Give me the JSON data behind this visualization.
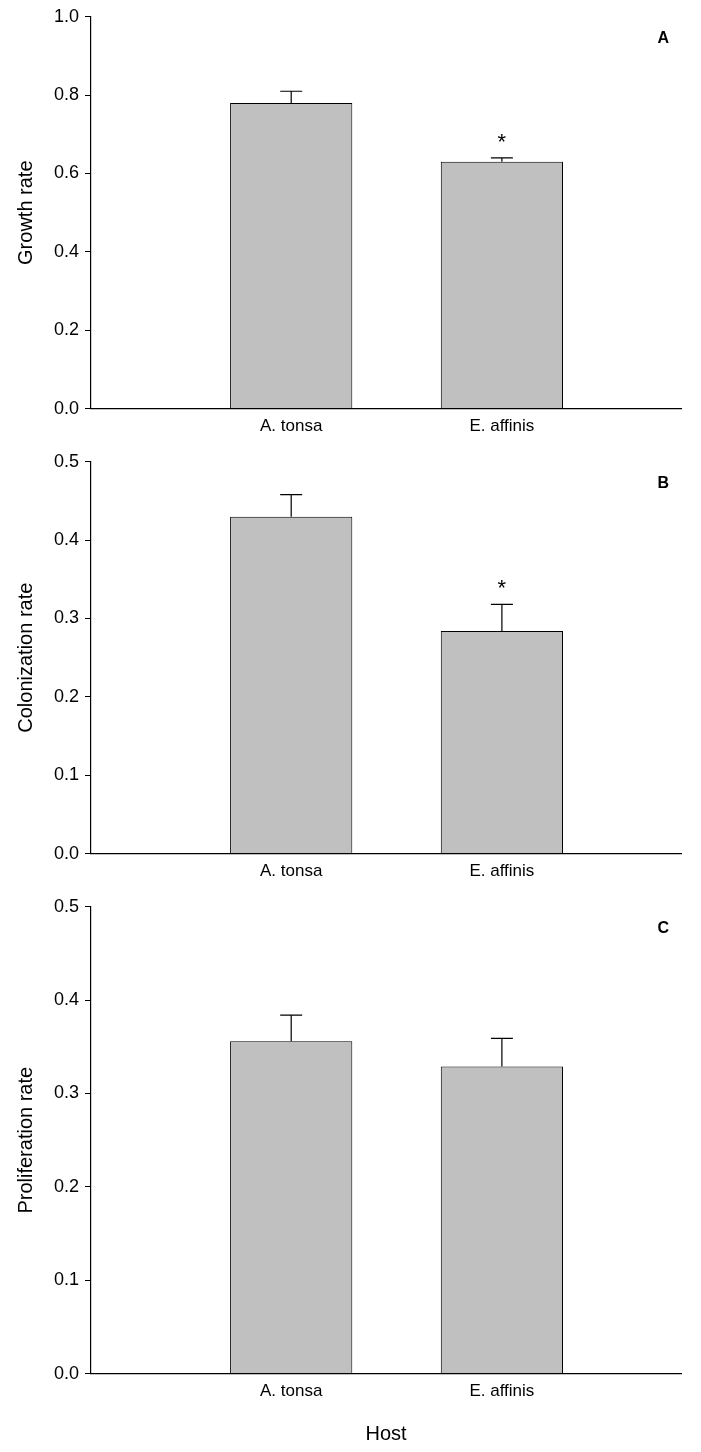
{
  "chart_data": [
    {
      "type": "bar",
      "ylabel": "Growth rate",
      "categories": [
        "A. tonsa",
        "E. affinis"
      ],
      "values": [
        0.78,
        0.63
      ],
      "errors": [
        0.03,
        0.01
      ],
      "color": "#c0c0c0",
      "ylim": [
        0,
        1.0
      ],
      "yticks": [
        {
          "value": 0,
          "label": "0.0"
        },
        {
          "value": 0.2,
          "label": "0.2"
        },
        {
          "value": 0.4,
          "label": "0.4"
        },
        {
          "value": 0.6,
          "label": "0.6"
        },
        {
          "value": 0.8,
          "label": "0.8"
        },
        {
          "value": 1.0,
          "label": "1.0"
        }
      ],
      "grid": false,
      "legend": false,
      "annotations": [
        "A",
        "*"
      ]
    },
    {
      "type": "bar",
      "ylabel": "Colonization rate",
      "categories": [
        "A. tonsa",
        "E. affinis"
      ],
      "values": [
        0.43,
        0.284
      ],
      "errors": [
        0.028,
        0.034
      ],
      "color": "#c0c0c0",
      "ylim": [
        0,
        0.5
      ],
      "yticks": [
        {
          "value": 0,
          "label": "0.0"
        },
        0.1,
        0.2,
        0.3,
        0.4,
        0.5
      ],
      "grid": false,
      "legend": false,
      "annotations": [
        "B",
        "*"
      ]
    },
    {
      "type": "bar",
      "ylabel": "Proliferation rate",
      "xlabel": "Host",
      "categories": [
        "A. tonsa",
        "E. affinis"
      ],
      "values": [
        0.356,
        0.329
      ],
      "errors": [
        0.028,
        0.03
      ],
      "color": "#c0c0c0",
      "ylim": [
        0,
        0.5
      ],
      "yticks": [
        {
          "value": 0,
          "label": "0.0"
        },
        0.1,
        0.2,
        0.3,
        0.4,
        0.5
      ],
      "grid": false,
      "legend": false,
      "annotations": [
        "C"
      ]
    }
  ]
}
